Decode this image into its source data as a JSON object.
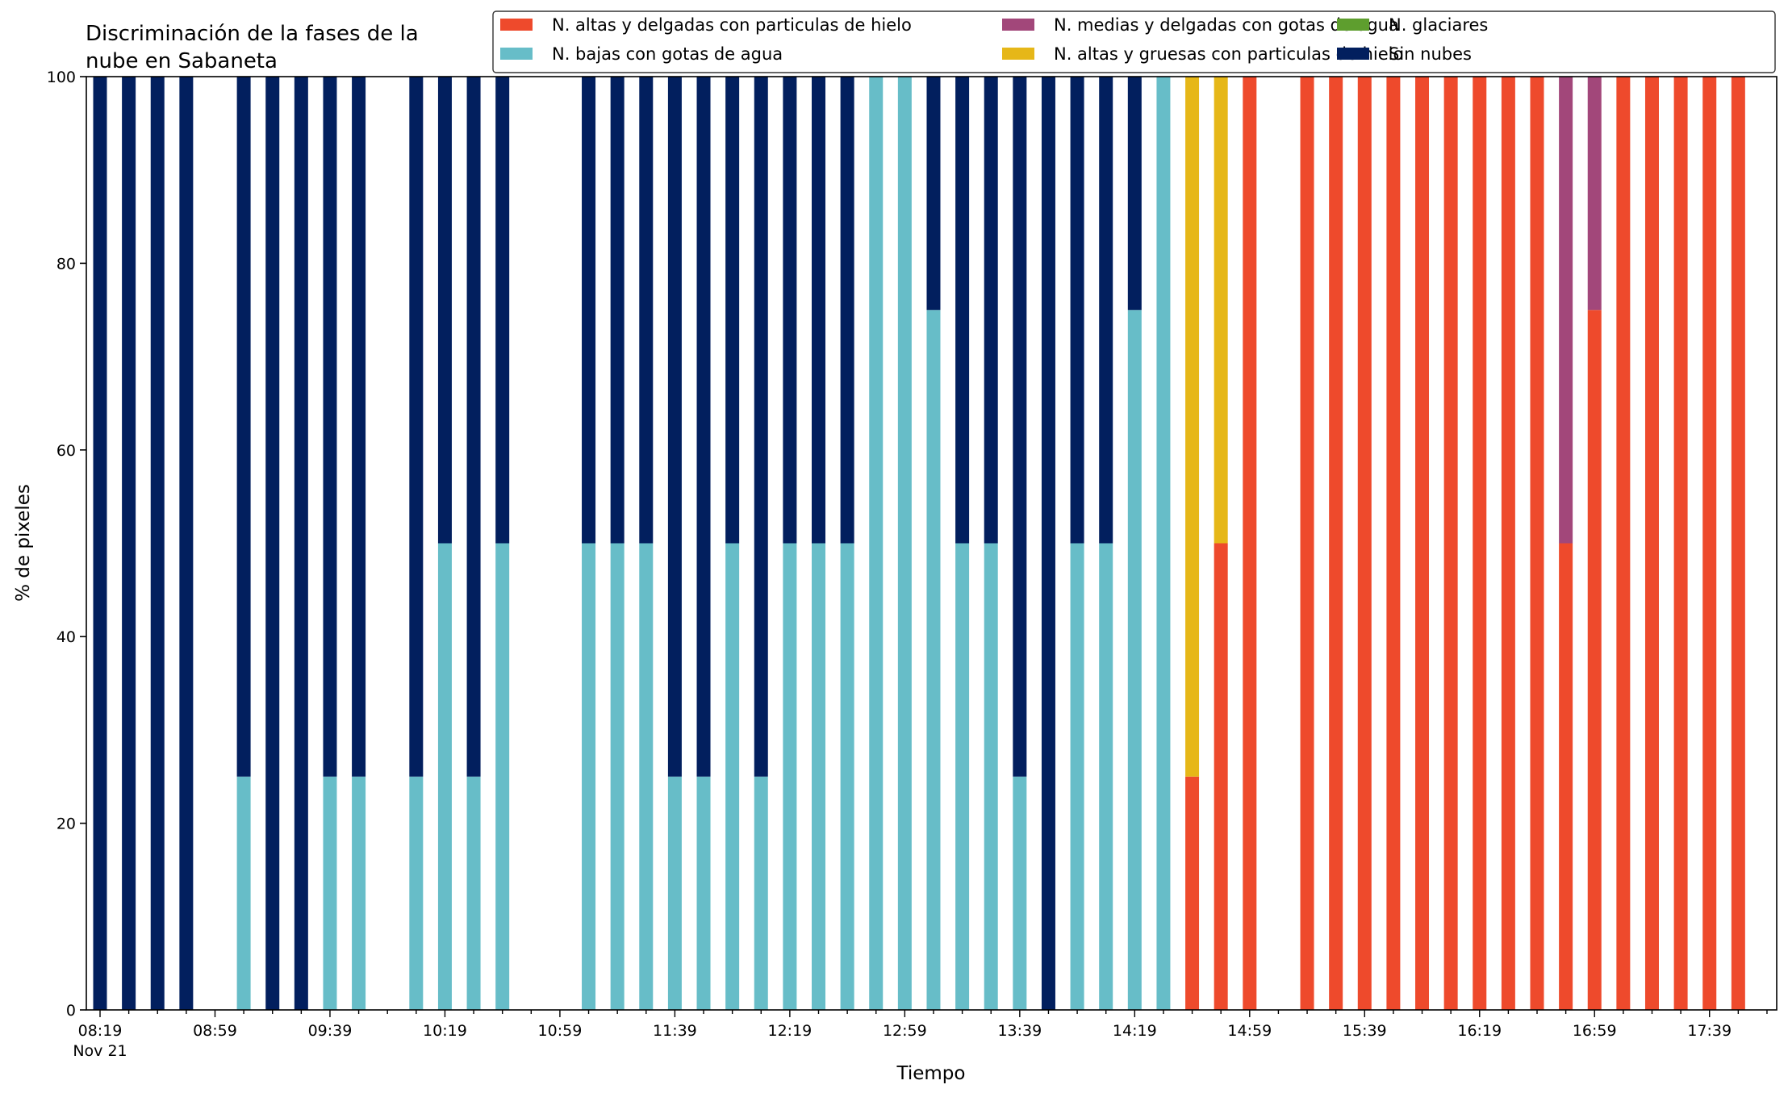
{
  "chart_data": {
    "type": "bar",
    "stacked": true,
    "title_lines": [
      "Discriminación de la fases de la",
      "nube en Sabaneta"
    ],
    "xlabel": "Tiempo",
    "ylabel": "% de pixeles",
    "ylim": [
      0,
      100
    ],
    "yticks": [
      0,
      20,
      40,
      60,
      80,
      100
    ],
    "grid": false,
    "legend_position": "top-right",
    "x_start": "08:19",
    "x_step_minutes": 10,
    "slot_count": 60,
    "xtick_labels": [
      {
        "slot": 0,
        "label": "08:19",
        "sublabel": "Nov 21"
      },
      {
        "slot": 4,
        "label": "08:59"
      },
      {
        "slot": 8,
        "label": "09:39"
      },
      {
        "slot": 12,
        "label": "10:19"
      },
      {
        "slot": 16,
        "label": "10:59"
      },
      {
        "slot": 20,
        "label": "11:39"
      },
      {
        "slot": 24,
        "label": "12:19"
      },
      {
        "slot": 28,
        "label": "12:59"
      },
      {
        "slot": 32,
        "label": "13:39"
      },
      {
        "slot": 36,
        "label": "14:19"
      },
      {
        "slot": 40,
        "label": "14:59"
      },
      {
        "slot": 44,
        "label": "15:39"
      },
      {
        "slot": 48,
        "label": "16:19"
      },
      {
        "slot": 52,
        "label": "16:59"
      },
      {
        "slot": 56,
        "label": "17:39"
      }
    ],
    "series": [
      {
        "name": "N. altas y delgadas con particulas de hielo",
        "color": "#ee4a2c"
      },
      {
        "name": "N. altas y gruesas con particulas de hielo",
        "color": "#e6b718"
      },
      {
        "name": "N. bajas con gotas de agua",
        "color": "#67bdc8"
      },
      {
        "name": "N. glaciares",
        "color": "#5e9e2e"
      },
      {
        "name": "N. medias y delgadas con gotas de agua",
        "color": "#a2477a"
      },
      {
        "name": "Sin nubes",
        "color": "#021f5e"
      }
    ],
    "legend_order": [
      0,
      2,
      4,
      1,
      3,
      5
    ],
    "bars": [
      {
        "time": "08:19",
        "values": [
          0,
          0,
          0,
          0,
          0,
          100
        ]
      },
      {
        "time": "08:29",
        "values": [
          0,
          0,
          0,
          0,
          0,
          100
        ]
      },
      {
        "time": "08:39",
        "values": [
          0,
          0,
          0,
          0,
          0,
          100
        ]
      },
      {
        "time": "08:49",
        "values": [
          0,
          0,
          0,
          0,
          0,
          100
        ]
      },
      {
        "time": "09:09",
        "values": [
          0,
          0,
          25,
          0,
          0,
          75
        ]
      },
      {
        "time": "09:19",
        "values": [
          0,
          0,
          0,
          0,
          0,
          100
        ]
      },
      {
        "time": "09:29",
        "values": [
          0,
          0,
          0,
          0,
          0,
          100
        ]
      },
      {
        "time": "09:39",
        "values": [
          0,
          0,
          25,
          0,
          0,
          75
        ]
      },
      {
        "time": "09:49",
        "values": [
          0,
          0,
          25,
          0,
          0,
          75
        ]
      },
      {
        "time": "10:09",
        "values": [
          0,
          0,
          25,
          0,
          0,
          75
        ]
      },
      {
        "time": "10:19",
        "values": [
          0,
          0,
          50,
          0,
          0,
          50
        ]
      },
      {
        "time": "10:29",
        "values": [
          0,
          0,
          25,
          0,
          0,
          75
        ]
      },
      {
        "time": "10:39",
        "values": [
          0,
          0,
          50,
          0,
          0,
          50
        ]
      },
      {
        "time": "11:09",
        "values": [
          0,
          0,
          50,
          0,
          0,
          50
        ]
      },
      {
        "time": "11:19",
        "values": [
          0,
          0,
          50,
          0,
          0,
          50
        ]
      },
      {
        "time": "11:29",
        "values": [
          0,
          0,
          50,
          0,
          0,
          50
        ]
      },
      {
        "time": "11:39",
        "values": [
          0,
          0,
          25,
          0,
          0,
          75
        ]
      },
      {
        "time": "11:49",
        "values": [
          0,
          0,
          25,
          0,
          0,
          75
        ]
      },
      {
        "time": "11:59",
        "values": [
          0,
          0,
          50,
          0,
          0,
          50
        ]
      },
      {
        "time": "12:09",
        "values": [
          0,
          0,
          25,
          0,
          0,
          75
        ]
      },
      {
        "time": "12:19",
        "values": [
          0,
          0,
          50,
          0,
          0,
          50
        ]
      },
      {
        "time": "12:29",
        "values": [
          0,
          0,
          50,
          0,
          0,
          50
        ]
      },
      {
        "time": "12:39",
        "values": [
          0,
          0,
          50,
          0,
          0,
          50
        ]
      },
      {
        "time": "12:49",
        "values": [
          0,
          0,
          100,
          0,
          0,
          0
        ]
      },
      {
        "time": "12:59",
        "values": [
          0,
          0,
          100,
          0,
          0,
          0
        ]
      },
      {
        "time": "13:09",
        "values": [
          0,
          0,
          75,
          0,
          0,
          25
        ]
      },
      {
        "time": "13:19",
        "values": [
          0,
          0,
          50,
          0,
          0,
          50
        ]
      },
      {
        "time": "13:29",
        "values": [
          0,
          0,
          50,
          0,
          0,
          50
        ]
      },
      {
        "time": "13:39",
        "values": [
          0,
          0,
          25,
          0,
          0,
          75
        ]
      },
      {
        "time": "13:49",
        "values": [
          0,
          0,
          0,
          0,
          0,
          100
        ]
      },
      {
        "time": "13:59",
        "values": [
          0,
          0,
          50,
          0,
          0,
          50
        ]
      },
      {
        "time": "14:09",
        "values": [
          0,
          0,
          50,
          0,
          0,
          50
        ]
      },
      {
        "time": "14:19",
        "values": [
          0,
          0,
          75,
          0,
          0,
          25
        ]
      },
      {
        "time": "14:29",
        "values": [
          0,
          0,
          100,
          0,
          0,
          0
        ]
      },
      {
        "time": "14:39",
        "values": [
          25,
          75,
          0,
          0,
          0,
          0
        ]
      },
      {
        "time": "14:49",
        "values": [
          50,
          50,
          0,
          0,
          0,
          0
        ]
      },
      {
        "time": "14:59",
        "values": [
          100,
          0,
          0,
          0,
          0,
          0
        ]
      },
      {
        "time": "15:19",
        "values": [
          100,
          0,
          0,
          0,
          0,
          0
        ]
      },
      {
        "time": "15:29",
        "values": [
          100,
          0,
          0,
          0,
          0,
          0
        ]
      },
      {
        "time": "15:39",
        "values": [
          100,
          0,
          0,
          0,
          0,
          0
        ]
      },
      {
        "time": "15:49",
        "values": [
          100,
          0,
          0,
          0,
          0,
          0
        ]
      },
      {
        "time": "15:59",
        "values": [
          100,
          0,
          0,
          0,
          0,
          0
        ]
      },
      {
        "time": "16:09",
        "values": [
          100,
          0,
          0,
          0,
          0,
          0
        ]
      },
      {
        "time": "16:19",
        "values": [
          100,
          0,
          0,
          0,
          0,
          0
        ]
      },
      {
        "time": "16:29",
        "values": [
          100,
          0,
          0,
          0,
          0,
          0
        ]
      },
      {
        "time": "16:39",
        "values": [
          100,
          0,
          0,
          0,
          0,
          0
        ]
      },
      {
        "time": "16:49",
        "values": [
          50,
          0,
          0,
          0,
          50,
          0
        ]
      },
      {
        "time": "16:59",
        "values": [
          75,
          0,
          0,
          0,
          25,
          0
        ]
      },
      {
        "time": "17:09",
        "values": [
          100,
          0,
          0,
          0,
          0,
          0
        ]
      },
      {
        "time": "17:19",
        "values": [
          100,
          0,
          0,
          0,
          0,
          0
        ]
      },
      {
        "time": "17:29",
        "values": [
          100,
          0,
          0,
          0,
          0,
          0
        ]
      },
      {
        "time": "17:39",
        "values": [
          100,
          0,
          0,
          0,
          0,
          0
        ]
      },
      {
        "time": "17:49",
        "values": [
          100,
          0,
          0,
          0,
          0,
          0
        ]
      }
    ]
  }
}
